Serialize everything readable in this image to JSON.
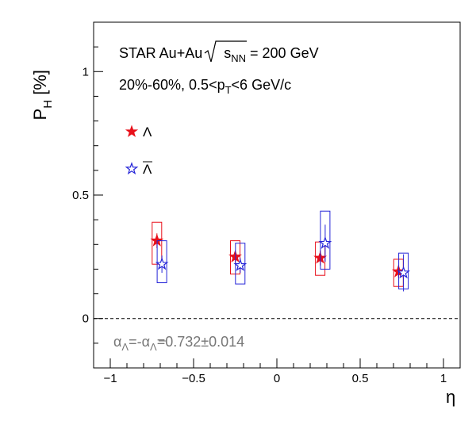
{
  "chart_data": {
    "type": "scatter",
    "xlabel": "η",
    "ylabel": {
      "main": "P",
      "sub": "H",
      "unit": " [%]"
    },
    "xlim": [
      -1.1,
      1.1
    ],
    "ylim": [
      -0.2,
      1.2
    ],
    "xticks": [
      -1,
      -0.5,
      0,
      0.5,
      1
    ],
    "xtick_labels": [
      "−1",
      "−0.5",
      "0",
      "0.5",
      "1"
    ],
    "yticks": [
      0,
      0.5,
      1
    ],
    "ytick_labels": [
      "0",
      "0.5",
      "1"
    ],
    "annotations": {
      "line1_pre": "STAR Au+Au ",
      "line1_sqrt_s": "s",
      "line1_sqrt_sub": "NN",
      "line1_post": " = 200 GeV",
      "line2_pre": "20%-60%, 0.5<p",
      "line2_sub": "T",
      "line2_post": "<6 GeV/c",
      "alpha_text_1": "α",
      "alpha_sub_1": "Λ",
      "alpha_mid": "=-α",
      "alpha_sub_2": "Λ",
      "alpha_post": "=0.732±0.014"
    },
    "series": [
      {
        "name": "Λ",
        "color": "#e8101b",
        "marker": "filled-star",
        "x": [
          -0.72,
          -0.25,
          0.26,
          0.73
        ],
        "y": [
          0.315,
          0.25,
          0.245,
          0.19
        ],
        "stat_err": [
          0.03,
          0.025,
          0.03,
          0.025
        ],
        "sys_low": [
          0.22,
          0.18,
          0.175,
          0.13
        ],
        "sys_high": [
          0.39,
          0.315,
          0.31,
          0.24
        ]
      },
      {
        "name": "Λ̄",
        "color": "#2525d8",
        "marker": "open-star",
        "x": [
          -0.69,
          -0.22,
          0.29,
          0.76
        ],
        "y": [
          0.22,
          0.215,
          0.305,
          0.185
        ],
        "stat_err": [
          0.035,
          0.03,
          0.075,
          0.075
        ],
        "sys_low": [
          0.145,
          0.14,
          0.2,
          0.12
        ],
        "sys_high": [
          0.315,
          0.305,
          0.435,
          0.265
        ]
      }
    ],
    "legend_labels": [
      "Λ",
      "Λ"
    ],
    "reference_line_y": 0
  }
}
